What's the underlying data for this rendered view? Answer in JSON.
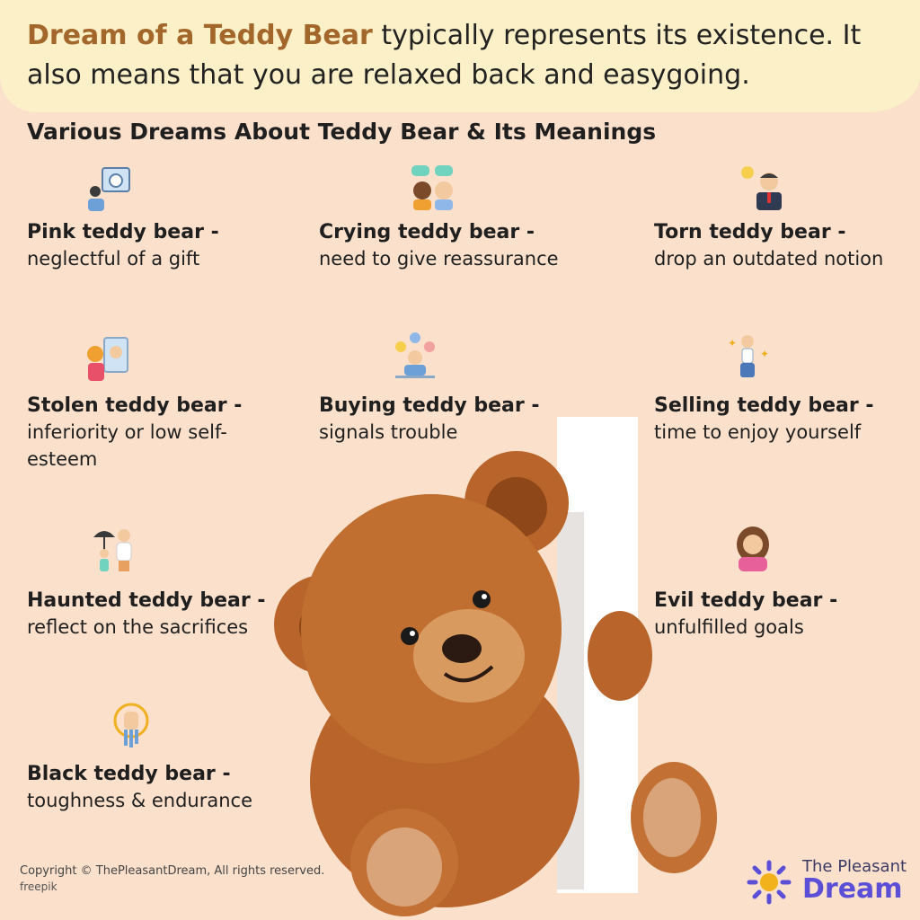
{
  "banner": {
    "highlight": "Dream of a Teddy Bear",
    "rest": " typically represents its existence. It also means that you are relaxed back and easygoing."
  },
  "section_title": "Various Dreams About Teddy Bear & Its Meanings",
  "items": [
    {
      "title": "Pink teddy bear -",
      "desc": "neglectful of a gift",
      "icon": "calendar-person-icon"
    },
    {
      "title": "Crying teddy bear -",
      "desc": "need to give reassurance",
      "icon": "two-people-chat-icon"
    },
    {
      "title": "Torn teddy bear -",
      "desc": "drop an outdated notion",
      "icon": "idea-businessman-icon"
    },
    {
      "title": "Stolen teddy bear -",
      "desc": "inferiority or low self-esteem",
      "icon": "mirror-woman-icon"
    },
    {
      "title": "Buying teddy bear -",
      "desc": "signals trouble",
      "icon": "stressed-person-icon"
    },
    {
      "title": "Selling teddy bear -",
      "desc": "time to enjoy yourself",
      "icon": "dancing-person-icon"
    },
    {
      "title": "Haunted teddy bear -",
      "desc": "reflect on the sacrifices",
      "icon": "umbrella-family-icon"
    },
    {
      "title": "Evil teddy bear -",
      "desc": "unfulfilled goals",
      "icon": "sad-woman-icon"
    },
    {
      "title": "Black teddy bear -",
      "desc": "toughness & endurance",
      "icon": "strong-fist-icon"
    }
  ],
  "footer": {
    "copyright": "Copyright © ThePleasantDream, All rights reserved.",
    "credit": "freepik",
    "logo_line1": "The Pleasant",
    "logo_line2": "Dream"
  },
  "colors": {
    "background": "#fbe0cc",
    "banner": "#fbf0c7",
    "highlight": "#a3672c",
    "logo": "#5b4fd8"
  }
}
